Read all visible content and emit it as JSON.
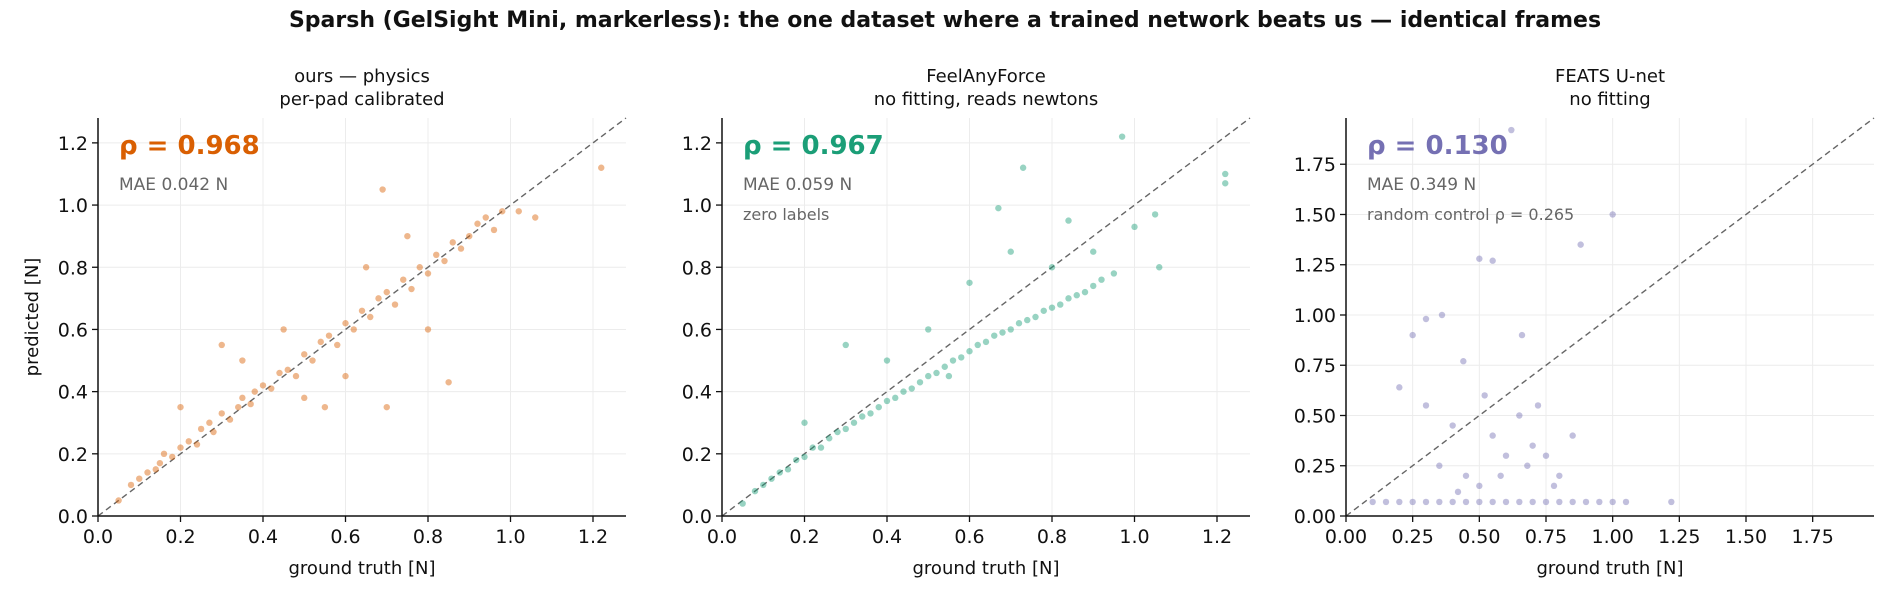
{
  "figure": {
    "title": "Sparsh (GelSight Mini, markerless): the one dataset where a trained network beats us — identical frames"
  },
  "chart_data": [
    {
      "type": "scatter",
      "title": "ours — physics",
      "subtitle": "per-pad calibrated",
      "xlabel": "ground truth [N]",
      "ylabel": "predicted [N]",
      "xlim": [
        0.0,
        1.28
      ],
      "ylim": [
        0.0,
        1.28
      ],
      "xticks": [
        "0.0",
        "0.2",
        "0.4",
        "0.6",
        "0.8",
        "1.0",
        "1.2"
      ],
      "yticks": [
        "0.0",
        "0.2",
        "0.4",
        "0.6",
        "0.8",
        "1.0",
        "1.2"
      ],
      "identity_line": true,
      "grid": true,
      "color": "#d95f02",
      "annotations": {
        "rho": "ρ = 0.968",
        "mae": "MAE 0.042 N",
        "note": ""
      },
      "points": [
        [
          0.05,
          0.05
        ],
        [
          0.08,
          0.1
        ],
        [
          0.1,
          0.12
        ],
        [
          0.12,
          0.14
        ],
        [
          0.14,
          0.15
        ],
        [
          0.15,
          0.17
        ],
        [
          0.16,
          0.2
        ],
        [
          0.18,
          0.19
        ],
        [
          0.2,
          0.22
        ],
        [
          0.22,
          0.24
        ],
        [
          0.24,
          0.23
        ],
        [
          0.25,
          0.28
        ],
        [
          0.27,
          0.3
        ],
        [
          0.28,
          0.27
        ],
        [
          0.3,
          0.33
        ],
        [
          0.32,
          0.31
        ],
        [
          0.34,
          0.35
        ],
        [
          0.35,
          0.38
        ],
        [
          0.37,
          0.36
        ],
        [
          0.38,
          0.4
        ],
        [
          0.4,
          0.42
        ],
        [
          0.42,
          0.41
        ],
        [
          0.44,
          0.46
        ],
        [
          0.46,
          0.47
        ],
        [
          0.48,
          0.45
        ],
        [
          0.5,
          0.52
        ],
        [
          0.52,
          0.5
        ],
        [
          0.54,
          0.56
        ],
        [
          0.56,
          0.58
        ],
        [
          0.58,
          0.55
        ],
        [
          0.6,
          0.62
        ],
        [
          0.62,
          0.6
        ],
        [
          0.64,
          0.66
        ],
        [
          0.66,
          0.64
        ],
        [
          0.68,
          0.7
        ],
        [
          0.7,
          0.72
        ],
        [
          0.72,
          0.68
        ],
        [
          0.74,
          0.76
        ],
        [
          0.76,
          0.73
        ],
        [
          0.78,
          0.8
        ],
        [
          0.8,
          0.78
        ],
        [
          0.82,
          0.84
        ],
        [
          0.84,
          0.82
        ],
        [
          0.86,
          0.88
        ],
        [
          0.88,
          0.86
        ],
        [
          0.9,
          0.9
        ],
        [
          0.92,
          0.94
        ],
        [
          0.94,
          0.96
        ],
        [
          0.96,
          0.92
        ],
        [
          0.98,
          0.98
        ],
        [
          1.02,
          0.98
        ],
        [
          1.06,
          0.96
        ],
        [
          1.22,
          1.12
        ],
        [
          0.69,
          1.05
        ],
        [
          0.85,
          0.43
        ],
        [
          0.7,
          0.35
        ],
        [
          0.2,
          0.35
        ],
        [
          0.3,
          0.55
        ],
        [
          0.55,
          0.35
        ],
        [
          0.45,
          0.6
        ],
        [
          0.6,
          0.45
        ],
        [
          0.8,
          0.6
        ],
        [
          0.35,
          0.5
        ],
        [
          0.65,
          0.8
        ],
        [
          0.75,
          0.9
        ],
        [
          0.5,
          0.38
        ]
      ]
    },
    {
      "type": "scatter",
      "title": "FeelAnyForce",
      "subtitle": "no fitting, reads newtons",
      "xlabel": "ground truth [N]",
      "ylabel": "",
      "xlim": [
        0.0,
        1.28
      ],
      "ylim": [
        0.0,
        1.28
      ],
      "xticks": [
        "0.0",
        "0.2",
        "0.4",
        "0.6",
        "0.8",
        "1.0",
        "1.2"
      ],
      "yticks": [
        "0.0",
        "0.2",
        "0.4",
        "0.6",
        "0.8",
        "1.0",
        "1.2"
      ],
      "identity_line": true,
      "grid": true,
      "color": "#1b9e77",
      "annotations": {
        "rho": "ρ = 0.967",
        "mae": "MAE 0.059 N",
        "note": "zero labels"
      },
      "points": [
        [
          0.05,
          0.04
        ],
        [
          0.08,
          0.08
        ],
        [
          0.1,
          0.1
        ],
        [
          0.12,
          0.12
        ],
        [
          0.14,
          0.14
        ],
        [
          0.16,
          0.15
        ],
        [
          0.18,
          0.18
        ],
        [
          0.2,
          0.19
        ],
        [
          0.22,
          0.22
        ],
        [
          0.24,
          0.22
        ],
        [
          0.26,
          0.25
        ],
        [
          0.28,
          0.27
        ],
        [
          0.3,
          0.28
        ],
        [
          0.32,
          0.3
        ],
        [
          0.34,
          0.32
        ],
        [
          0.36,
          0.33
        ],
        [
          0.38,
          0.35
        ],
        [
          0.4,
          0.37
        ],
        [
          0.42,
          0.38
        ],
        [
          0.44,
          0.4
        ],
        [
          0.46,
          0.41
        ],
        [
          0.48,
          0.43
        ],
        [
          0.5,
          0.45
        ],
        [
          0.52,
          0.46
        ],
        [
          0.54,
          0.48
        ],
        [
          0.56,
          0.5
        ],
        [
          0.58,
          0.51
        ],
        [
          0.6,
          0.53
        ],
        [
          0.62,
          0.55
        ],
        [
          0.64,
          0.56
        ],
        [
          0.66,
          0.58
        ],
        [
          0.68,
          0.59
        ],
        [
          0.7,
          0.6
        ],
        [
          0.72,
          0.62
        ],
        [
          0.74,
          0.63
        ],
        [
          0.76,
          0.64
        ],
        [
          0.78,
          0.66
        ],
        [
          0.8,
          0.67
        ],
        [
          0.82,
          0.68
        ],
        [
          0.84,
          0.7
        ],
        [
          0.86,
          0.71
        ],
        [
          0.88,
          0.72
        ],
        [
          0.9,
          0.74
        ],
        [
          0.92,
          0.76
        ],
        [
          0.95,
          0.78
        ],
        [
          1.0,
          0.93
        ],
        [
          1.06,
          0.8
        ],
        [
          1.05,
          0.97
        ],
        [
          0.97,
          1.22
        ],
        [
          1.22,
          1.1
        ],
        [
          1.22,
          1.07
        ],
        [
          0.73,
          1.12
        ],
        [
          0.67,
          0.99
        ],
        [
          0.84,
          0.95
        ],
        [
          0.3,
          0.55
        ],
        [
          0.5,
          0.6
        ],
        [
          0.4,
          0.5
        ],
        [
          0.6,
          0.75
        ],
        [
          0.7,
          0.85
        ],
        [
          0.2,
          0.3
        ],
        [
          0.55,
          0.45
        ],
        [
          0.8,
          0.8
        ],
        [
          0.9,
          0.85
        ]
      ]
    },
    {
      "type": "scatter",
      "title": "FEATS U-net",
      "subtitle": "no fitting",
      "xlabel": "ground truth [N]",
      "ylabel": "",
      "xlim": [
        0.0,
        1.98
      ],
      "ylim": [
        0.0,
        1.98
      ],
      "xticks": [
        "0.00",
        "0.25",
        "0.50",
        "0.75",
        "1.00",
        "1.25",
        "1.50",
        "1.75"
      ],
      "yticks": [
        "0.00",
        "0.25",
        "0.50",
        "0.75",
        "1.00",
        "1.25",
        "1.50",
        "1.75"
      ],
      "identity_line": true,
      "grid": true,
      "color": "#7570b3",
      "annotations": {
        "rho": "ρ = 0.130",
        "mae": "MAE 0.349 N",
        "note": "random control ρ = 0.265"
      },
      "points": [
        [
          0.1,
          0.07
        ],
        [
          0.15,
          0.07
        ],
        [
          0.2,
          0.07
        ],
        [
          0.25,
          0.07
        ],
        [
          0.3,
          0.07
        ],
        [
          0.35,
          0.07
        ],
        [
          0.4,
          0.07
        ],
        [
          0.45,
          0.07
        ],
        [
          0.5,
          0.07
        ],
        [
          0.55,
          0.07
        ],
        [
          0.6,
          0.07
        ],
        [
          0.65,
          0.07
        ],
        [
          0.7,
          0.07
        ],
        [
          0.75,
          0.07
        ],
        [
          0.8,
          0.07
        ],
        [
          0.85,
          0.07
        ],
        [
          0.9,
          0.07
        ],
        [
          0.95,
          0.07
        ],
        [
          1.0,
          0.07
        ],
        [
          1.05,
          0.07
        ],
        [
          1.22,
          0.07
        ],
        [
          0.2,
          0.64
        ],
        [
          0.3,
          0.98
        ],
        [
          0.36,
          1.0
        ],
        [
          0.44,
          0.77
        ],
        [
          0.5,
          1.28
        ],
        [
          0.55,
          1.27
        ],
        [
          0.62,
          1.92
        ],
        [
          0.66,
          0.9
        ],
        [
          0.72,
          0.55
        ],
        [
          0.88,
          1.35
        ],
        [
          1.0,
          1.5
        ],
        [
          0.4,
          0.45
        ],
        [
          0.6,
          0.3
        ],
        [
          0.7,
          0.35
        ],
        [
          0.8,
          0.2
        ],
        [
          0.45,
          0.2
        ],
        [
          0.55,
          0.4
        ],
        [
          0.65,
          0.5
        ],
        [
          0.75,
          0.3
        ],
        [
          0.35,
          0.25
        ],
        [
          0.5,
          0.15
        ],
        [
          0.85,
          0.4
        ],
        [
          0.3,
          0.55
        ],
        [
          0.25,
          0.9
        ],
        [
          0.58,
          0.2
        ],
        [
          0.68,
          0.25
        ],
        [
          0.78,
          0.15
        ],
        [
          0.42,
          0.12
        ],
        [
          0.52,
          0.6
        ]
      ]
    }
  ]
}
